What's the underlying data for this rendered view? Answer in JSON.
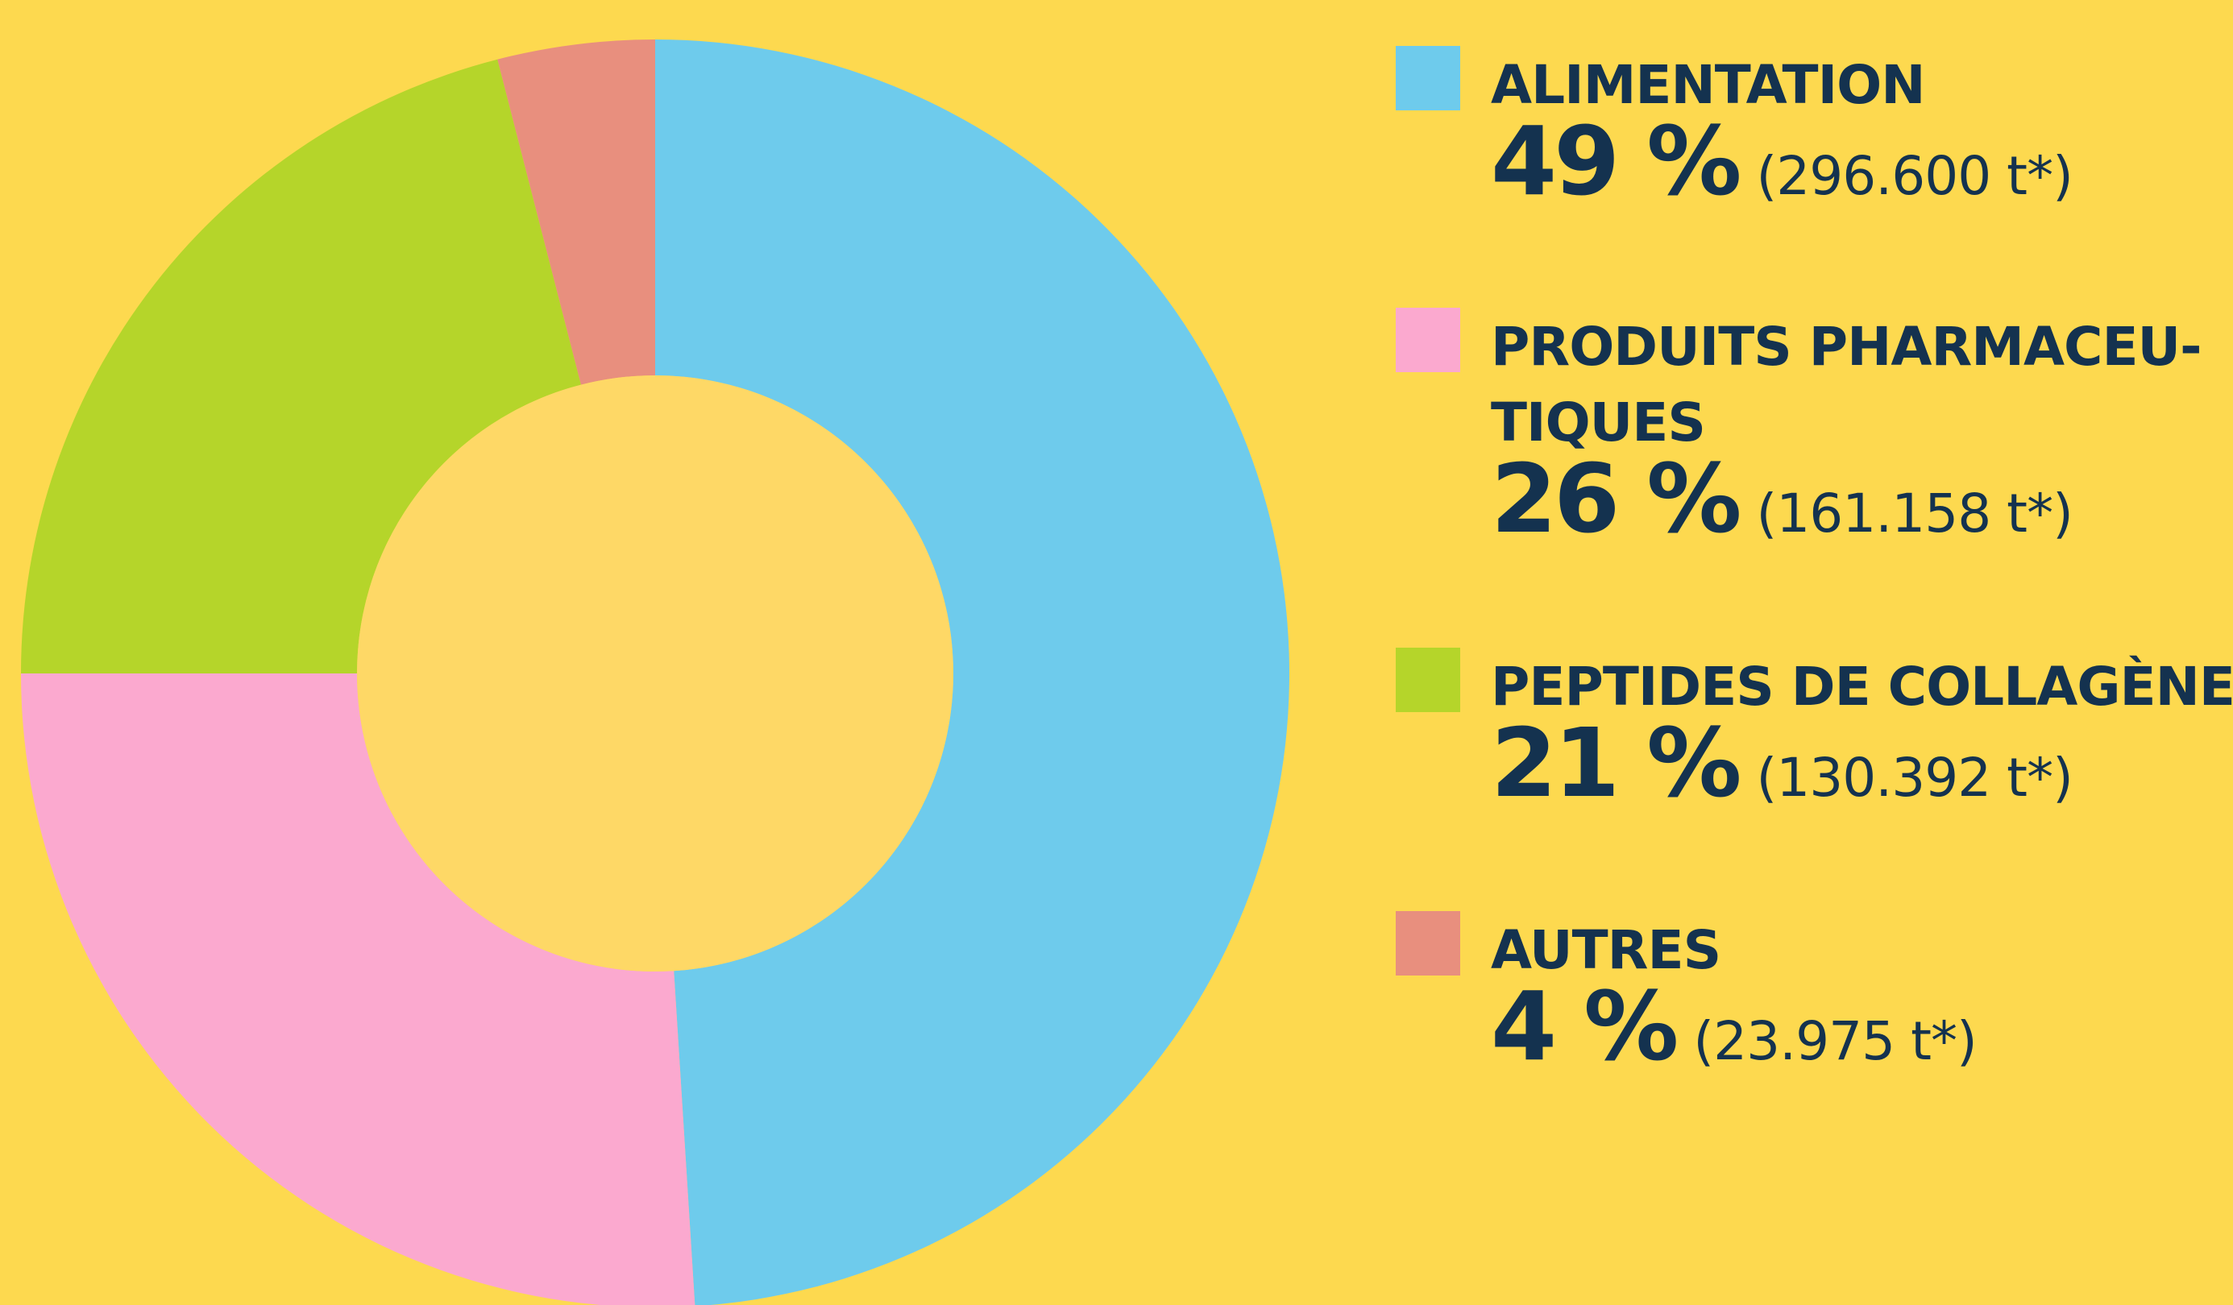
{
  "chart_data": {
    "type": "donut",
    "categories": [
      "ALIMENTATION",
      "PRODUITS PHARMACEU-\nTIQUES",
      "PEPTIDES DE COLLAGÈNE",
      "AUTRES"
    ],
    "values": [
      49,
      26,
      21,
      4
    ],
    "value_labels": [
      "49 %",
      "26 %",
      "21 %",
      "4 %"
    ],
    "details": [
      "(296.600 t*)",
      "(161.158 t*)",
      "(130.392 t*)",
      "(23.975 t*)"
    ],
    "colors": [
      "#6ecbec",
      "#fba9cf",
      "#b5d52a",
      "#e88f7e"
    ]
  }
}
